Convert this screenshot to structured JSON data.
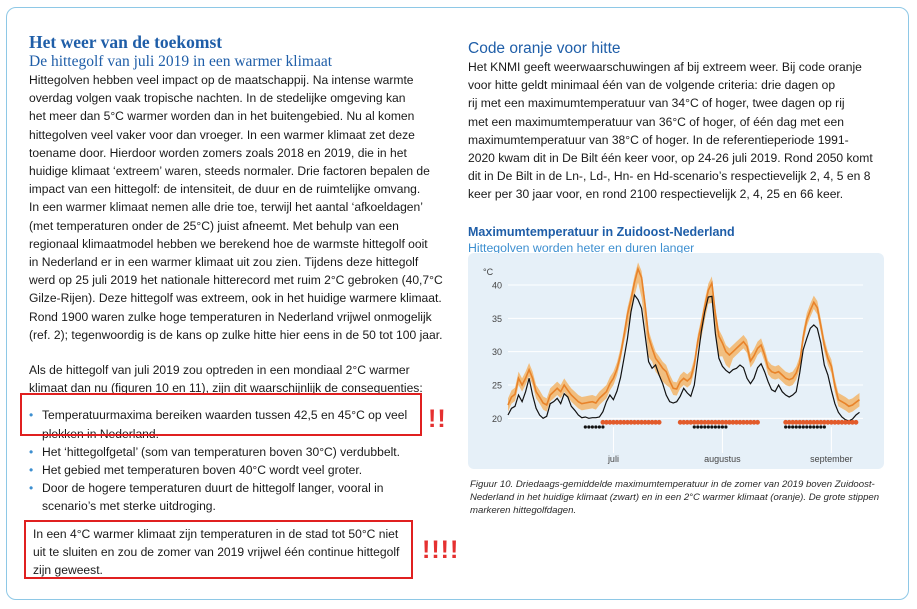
{
  "left": {
    "title": "Het weer van de toekomst",
    "subtitle": "De hittegolf van juli 2019 in een warmer klimaat",
    "para1": [
      "Hittegolven hebben veel impact op de maatschappij. Na intense warmte",
      "overdag volgen vaak tropische nachten. In de stedelijke omgeving kan",
      "het meer dan 5°C warmer worden dan in het buitengebied. Nu al komen",
      "hittegolven veel vaker voor dan vroeger. In een warmer klimaat zet deze",
      "toename door. Hierdoor worden zomers zoals 2018 en 2019, die in het",
      "huidige klimaat ‘extreem’ waren, steeds normaler. Drie factoren bepalen de",
      "impact van een hittegolf: de intensiteit, de duur en de ruimtelijke omvang.",
      "In een warmer klimaat nemen alle drie toe, terwijl het aantal ‘afkoeldagen’",
      "(met temperaturen onder de 25°C) juist afneemt. Met behulp van een",
      "regionaal klimaatmodel hebben we berekend hoe de warmste hittegolf ooit",
      "in Nederland er in een warmer klimaat uit zou zien. Tijdens deze hittegolf",
      "werd op 25 juli 2019 het nationale hitterecord met ruim 2°C gebroken (40,7°C",
      "Gilze-Rijen). Deze hittegolf was extreem, ook in het huidige warmere klimaat.",
      "Rond 1900 waren zulke hoge temperaturen in Nederland vrijwel onmogelijk",
      "(ref. 2); tegenwoordig is de kans op zulke hitte hier eens in de 50 tot 100 jaar."
    ],
    "para2": [
      "Als de hittegolf van juli 2019 zou optreden in een mondiaal 2°C warmer",
      "klimaat dan nu (figuren 10 en 11), zijn dit waarschijnlijk de consequenties:"
    ],
    "bullets": [
      [
        "Temperatuurmaxima bereiken waarden tussen 42,5 en 45°C op veel",
        "plekken in Nederland."
      ],
      [
        "Het ‘hittegolfgetal’ (som van temperaturen boven 30°C) verdubbelt."
      ],
      [
        "Het gebied met temperaturen boven 40°C wordt veel groter."
      ],
      [
        "Door de hogere temperaturen duurt de hittegolf langer, vooral in",
        "scenario’s met sterke uitdroging."
      ]
    ],
    "final": [
      "In een 4°C warmer klimaat zijn temperaturen in de stad tot 50°C niet",
      "uit te sluiten en zou de zomer van 2019 vrijwel één continue hittegolf",
      "zijn geweest."
    ],
    "exclaim1": "!!",
    "exclaim2": "!!!!"
  },
  "right": {
    "section_title": "Code oranje voor hitte",
    "para": [
      "Het KNMI geeft weerwaarschuwingen af bij extreem weer. Bij code oranje",
      "voor hitte geldt minimaal één van de volgende criteria: drie dagen op",
      "rij met een maximumtemperatuur van 34°C of hoger, twee dagen op rij",
      "met een maximumtemperatuur van 36°C of hoger, of één dag met een",
      "maximumtemperatuur van 38°C of hoger. In de referentieperiode 1991-",
      "2020 kwam dit in De Bilt één keer voor, op 24-26 juli 2019. Rond 2050 komt",
      "dit in De Bilt in de Ln-, Ld-, Hn- en Hd-scenario’s respectievelijk 2, 4, 5 en 8",
      "keer per 30 jaar voor, en rond 2100 respectievelijk 2, 4, 25 en 66 keer."
    ],
    "chart_title": "Maximumtemperatuur in Zuidoost-Nederland",
    "chart_subtitle": "Hittegolven worden heter en duren langer",
    "caption": [
      "Figuur 10. Driedaags-gemiddelde maximumtemperatuur in de zomer van 2019 boven Zuidoost-",
      "Nederland in het huidige klimaat (zwart) en in een 2°C warmer klimaat (oranje). De grote stippen",
      "markeren hittegolfdagen."
    ]
  },
  "chart_data": {
    "type": "line",
    "ylabel": "°C",
    "yticks": [
      20,
      25,
      30,
      35,
      40
    ],
    "ylim": [
      17.5,
      43
    ],
    "xlabels": [
      "juli",
      "augustus",
      "september"
    ],
    "xlabel_days": [
      30,
      61,
      92
    ],
    "xlim": [
      0,
      101
    ],
    "grid": true,
    "colors": {
      "current": "#111111",
      "warmer": "#e8832a",
      "band": "#f2b56a",
      "heatwave_warmer": "#e25b2b"
    },
    "series": [
      {
        "name": "zwart",
        "key": "current",
        "values": [
          20.5,
          21.5,
          21.8,
          23.5,
          22.5,
          24,
          26,
          23.5,
          21.5,
          20.5,
          20,
          20.3,
          22.2,
          22.5,
          23,
          22.2,
          23.7,
          23.2,
          21.8,
          21.2,
          20.5,
          20.1,
          20.2,
          20,
          20.1,
          20.1,
          20.2,
          21,
          22.5,
          23.5,
          22.8,
          24.1,
          26.1,
          29,
          32,
          36,
          38.5,
          37.8,
          36.5,
          32.5,
          28.5,
          27.5,
          28,
          26.5,
          25.2,
          23.5,
          22.5,
          22.3,
          22.5,
          23.3,
          24.5,
          23.8,
          23.3,
          25,
          29,
          33,
          36,
          38.2,
          38.3,
          32.7,
          29,
          27.8,
          27.2,
          26.8,
          27.3,
          27.5,
          28,
          27.6,
          26,
          25.2,
          26,
          27.6,
          28.2,
          27,
          25.5,
          24.3,
          24,
          25,
          24,
          23.5,
          23.2,
          23.5,
          24,
          26.8,
          30.3,
          32,
          33.5,
          34,
          33.5,
          31.3,
          28,
          26.5,
          24.2,
          22.2,
          20.9,
          20.2,
          19.8,
          19.6,
          19.9,
          20.5,
          20.9
        ]
      },
      {
        "name": "oranje",
        "key": "warmer",
        "values": [
          22,
          23.2,
          23.6,
          26,
          25,
          26,
          27.3,
          26,
          24,
          23.2,
          22.3,
          22,
          23.5,
          24,
          24.5,
          24,
          25,
          24.2,
          23.5,
          23,
          22.5,
          22.2,
          22.3,
          22.4,
          22.5,
          22.3,
          23,
          23.5,
          24,
          25.2,
          26,
          27.4,
          29.5,
          32.4,
          35.6,
          37.8,
          40.4,
          42.4,
          41.1,
          37,
          32.2,
          30.5,
          29,
          28.3,
          27.5,
          27,
          25.6,
          24.5,
          24.4,
          25.5,
          26,
          25.6,
          26.1,
          28,
          31.6,
          34,
          36.8,
          39.2,
          40.3,
          35.6,
          32.3,
          31.3,
          30,
          29.5,
          30,
          30.5,
          31,
          31.5,
          30.8,
          28.6,
          29.4,
          30.5,
          31,
          29.5,
          27.6,
          27,
          26.8,
          27,
          26.5,
          26,
          25.8,
          26,
          26.8,
          28.3,
          32.2,
          34.8,
          36.2,
          37.4,
          36.6,
          33.9,
          31,
          29,
          27.8,
          24.9,
          22.8,
          22.5,
          22.2,
          21.8,
          22,
          22.4,
          22.8
        ]
      },
      {
        "name": "band",
        "key": "band",
        "lower_offset": [
          1,
          1,
          1,
          1,
          1,
          1,
          1,
          1,
          1,
          1,
          1,
          1,
          1,
          1,
          1,
          1,
          1,
          1,
          1,
          1,
          1,
          1,
          1,
          1,
          1,
          1,
          1,
          1,
          1,
          1,
          1,
          1,
          1,
          1,
          2,
          2,
          2,
          2,
          3,
          3,
          3,
          2,
          2,
          2,
          2,
          2,
          1,
          1,
          1,
          1,
          1,
          1,
          1,
          1,
          1,
          2,
          2,
          2,
          3,
          3,
          3,
          2,
          2,
          2,
          1,
          1,
          1,
          1,
          1,
          1,
          1,
          1,
          1,
          1,
          1,
          1,
          1,
          1,
          1,
          1,
          1,
          1,
          1,
          1,
          1,
          1,
          1,
          1,
          1,
          1,
          1,
          1,
          1,
          1,
          1,
          1,
          1,
          1,
          1,
          1,
          1
        ],
        "upper_offset": [
          1,
          1,
          1,
          1,
          1,
          1,
          1,
          1,
          1,
          1,
          1,
          1,
          1,
          1,
          1,
          1,
          1,
          1,
          1,
          1,
          1,
          1,
          1,
          1,
          1,
          1,
          1,
          1,
          1,
          1,
          1,
          1,
          1,
          1,
          1,
          1,
          1,
          1,
          1,
          1,
          1,
          1,
          1,
          1,
          1,
          1,
          1,
          1,
          1,
          1,
          1,
          1,
          1,
          1,
          1,
          1,
          1,
          1,
          1,
          1,
          1,
          1,
          1,
          1,
          1,
          1,
          1,
          1,
          1,
          1,
          1,
          1,
          1,
          1,
          1,
          1,
          1,
          1,
          1,
          1,
          1,
          1,
          1,
          1,
          1,
          1,
          1,
          1,
          1,
          1,
          1,
          1,
          1,
          1,
          1,
          1,
          1,
          1,
          1,
          1,
          1
        ]
      }
    ],
    "heatwave_days_current": [
      22,
      23,
      24,
      25,
      26,
      27,
      53,
      54,
      55,
      56,
      57,
      58,
      59,
      60,
      61,
      62,
      79,
      80,
      81,
      82,
      83,
      84,
      85,
      86,
      87,
      88,
      89,
      90
    ],
    "heatwave_days_warmer": [
      27,
      28,
      29,
      30,
      31,
      32,
      33,
      34,
      35,
      36,
      37,
      38,
      39,
      40,
      41,
      42,
      43,
      49,
      50,
      51,
      52,
      53,
      54,
      55,
      56,
      57,
      58,
      59,
      60,
      61,
      62,
      63,
      64,
      65,
      66,
      67,
      68,
      69,
      70,
      71,
      79,
      80,
      81,
      82,
      83,
      84,
      85,
      86,
      87,
      88,
      89,
      90,
      91,
      92,
      93,
      94,
      95,
      96,
      97,
      98,
      99
    ]
  }
}
